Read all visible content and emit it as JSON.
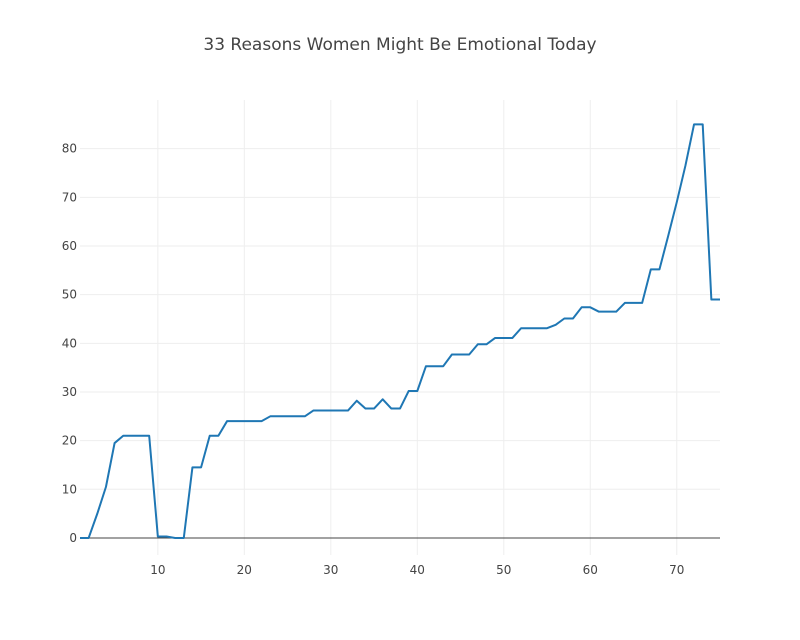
{
  "chart_data": {
    "type": "line",
    "title": "33 Reasons Women Might Be Emotional Today",
    "xlabel": "",
    "ylabel": "",
    "xlim": [
      1,
      75
    ],
    "ylim": [
      -3.5,
      90
    ],
    "x_ticks": [
      10,
      20,
      30,
      40,
      50,
      60,
      70
    ],
    "y_ticks": [
      0,
      10,
      20,
      30,
      40,
      50,
      60,
      70,
      80
    ],
    "grid": true,
    "legend": "none",
    "series": [
      {
        "color": "#1f77b4",
        "x": [
          1,
          2,
          3,
          4,
          5,
          6,
          7,
          8,
          9,
          10,
          11,
          12,
          13,
          14,
          15,
          16,
          17,
          18,
          19,
          20,
          21,
          22,
          23,
          24,
          25,
          26,
          27,
          28,
          29,
          30,
          31,
          32,
          33,
          34,
          35,
          36,
          37,
          38,
          39,
          40,
          41,
          42,
          43,
          44,
          45,
          46,
          47,
          48,
          49,
          50,
          51,
          52,
          53,
          54,
          55,
          56,
          57,
          58,
          59,
          60,
          61,
          62,
          63,
          64,
          65,
          66,
          67,
          68,
          69,
          70,
          71,
          72,
          73,
          74,
          75
        ],
        "y": [
          0,
          0,
          5,
          10.5,
          19.5,
          21,
          21,
          21,
          21,
          0.3,
          0.3,
          0,
          0,
          14.5,
          14.5,
          21,
          21,
          24,
          24,
          24,
          24,
          24,
          25,
          25,
          25,
          25,
          25,
          26.2,
          26.2,
          26.2,
          26.2,
          26.2,
          28.2,
          26.6,
          26.6,
          28.5,
          26.6,
          26.6,
          30.2,
          30.2,
          35.3,
          35.3,
          35.3,
          37.7,
          37.7,
          37.7,
          39.8,
          39.8,
          41.1,
          41.1,
          41.1,
          43.1,
          43.1,
          43.1,
          43.1,
          43.8,
          45.1,
          45.1,
          47.4,
          47.4,
          46.5,
          46.5,
          46.5,
          48.3,
          48.3,
          48.3,
          55.2,
          55.2,
          62,
          69,
          76.5,
          85,
          85,
          49,
          49
        ]
      }
    ]
  }
}
